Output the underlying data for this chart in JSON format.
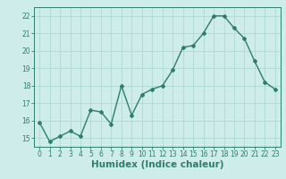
{
  "x": [
    0,
    1,
    2,
    3,
    4,
    5,
    6,
    7,
    8,
    9,
    10,
    11,
    12,
    13,
    14,
    15,
    16,
    17,
    18,
    19,
    20,
    21,
    22,
    23
  ],
  "y": [
    15.9,
    14.8,
    15.1,
    15.4,
    15.1,
    16.6,
    16.5,
    15.8,
    18.0,
    16.3,
    17.5,
    17.8,
    18.0,
    18.9,
    20.2,
    20.3,
    21.0,
    22.0,
    22.0,
    21.3,
    20.7,
    19.4,
    18.2,
    17.8
  ],
  "line_color": "#2e7d6e",
  "marker": "D",
  "markersize": 2.0,
  "linewidth": 1.0,
  "bg_color": "#ceecea",
  "grid_color": "#aed8d5",
  "xlabel": "Humidex (Indice chaleur)",
  "xlim": [
    -0.5,
    23.5
  ],
  "ylim": [
    14.5,
    22.5
  ],
  "yticks": [
    15,
    16,
    17,
    18,
    19,
    20,
    21,
    22
  ],
  "xticks": [
    0,
    1,
    2,
    3,
    4,
    5,
    6,
    7,
    8,
    9,
    10,
    11,
    12,
    13,
    14,
    15,
    16,
    17,
    18,
    19,
    20,
    21,
    22,
    23
  ],
  "tick_labelsize": 5.5,
  "xlabel_fontsize": 7.5,
  "xlabel_fontweight": "bold"
}
